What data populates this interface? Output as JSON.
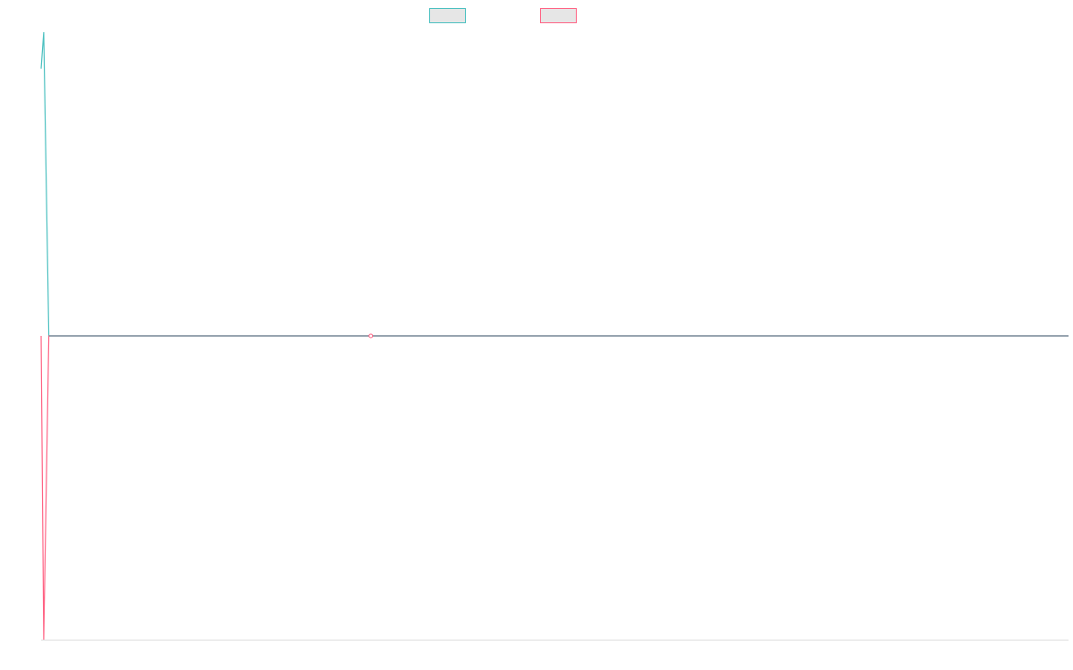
{
  "colors": {
    "series_a": "#4bc0c0",
    "series_b": "#ff6384",
    "legend_fill": "#e6e6e6",
    "baseline": "#6e8c99",
    "axis": "#dddddd"
  },
  "chart_data": {
    "type": "line",
    "title": "",
    "xlabel": "",
    "ylabel": "",
    "grid": false,
    "legend_placement": "top-center",
    "x": [
      0,
      1,
      2,
      3,
      4,
      5,
      6,
      7,
      8,
      9,
      10,
      11,
      12,
      13,
      14,
      15,
      16,
      17,
      18,
      19,
      20,
      21,
      22,
      23,
      24,
      25,
      26,
      27,
      28,
      29,
      30,
      31,
      32,
      33,
      34,
      35,
      36,
      37,
      38,
      39,
      40
    ],
    "xlim": [
      0,
      400
    ],
    "ylim": [
      -1,
      1
    ],
    "series": [
      {
        "color": "#4bc0c0",
        "legend": "",
        "values": [
          0.88,
          1.0,
          0.0,
          0.0,
          0.0,
          0.0,
          0.0,
          0.0,
          0.0,
          0.0,
          0.0,
          0.0,
          0.0,
          0.0,
          0.0,
          0.0,
          0.0,
          0.0,
          0.0,
          0.0,
          0.0,
          0.0,
          0.0,
          0.0,
          0.0,
          0.0,
          0.0,
          0.0,
          0.0,
          0.0,
          0.0,
          0.0,
          0.0,
          0.0,
          0.0,
          0.0,
          0.0,
          0.0,
          0.0,
          0.0,
          0.0
        ]
      },
      {
        "color": "#ff6384",
        "legend": "",
        "values": [
          0.0,
          -1.0,
          0.0,
          0.0,
          0.0,
          0.0,
          0.0,
          0.0,
          0.0,
          0.0,
          0.0,
          0.0,
          0.0,
          0.0,
          0.0,
          0.0,
          0.0,
          0.0,
          0.0,
          0.0,
          0.0,
          0.0,
          0.0,
          0.0,
          0.0,
          0.0,
          0.0,
          0.0,
          0.0,
          0.0,
          0.0,
          0.0,
          0.0,
          0.0,
          0.0,
          0.0,
          0.0,
          0.0,
          0.0,
          0.0,
          0.0
        ]
      }
    ],
    "markers": [
      {
        "series": 1,
        "x": 14,
        "y": 0.0
      }
    ]
  }
}
